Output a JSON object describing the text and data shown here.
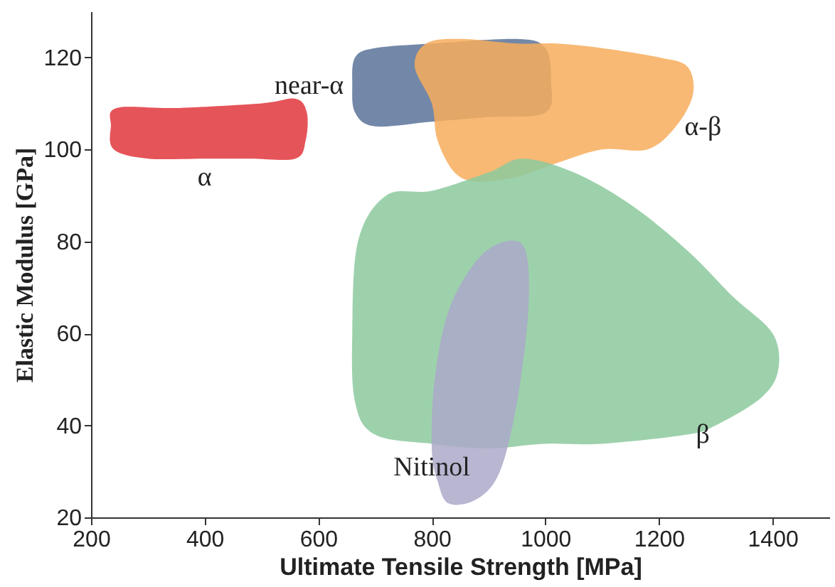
{
  "chart_data": {
    "type": "area",
    "xlabel": "Ultimate Tensile Strength [MPa]",
    "ylabel": "Elastic Modulus [GPa]",
    "xlim": [
      200,
      1500
    ],
    "ylim": [
      20,
      130
    ],
    "xticks": [
      200,
      400,
      600,
      800,
      1000,
      1200,
      1400
    ],
    "yticks": [
      20,
      40,
      60,
      80,
      100,
      120
    ],
    "grid": false,
    "legend": false,
    "series": [
      {
        "name": "α",
        "color": "#e0363c",
        "x": [
          400,
          300,
          240,
          235,
          245,
          350,
          500,
          560,
          580,
          578,
          560,
          480
        ],
        "values": [
          98,
          98,
          100,
          105,
          109,
          109,
          110,
          111,
          108,
          102,
          98,
          98
        ]
      },
      {
        "name": "near-α",
        "color": "#5a7399",
        "x": [
          660,
          665,
          700,
          800,
          900,
          1000,
          1010,
          1000,
          950,
          800,
          700,
          665
        ],
        "values": [
          114,
          108,
          105,
          106,
          107,
          108,
          115,
          122,
          124,
          123,
          122,
          120
        ]
      },
      {
        "name": "α-β",
        "color": "#f7ad5c",
        "x": [
          1230,
          1180,
          1100,
          1020,
          950,
          880,
          840,
          810,
          800,
          770,
          790,
          850,
          950,
          1020,
          1100,
          1200,
          1250,
          1260
        ],
        "values": [
          105,
          100,
          100,
          97,
          94,
          93,
          95,
          102,
          110,
          118,
          123,
          124,
          123,
          123,
          122,
          120,
          118,
          112
        ]
      },
      {
        "name": "β",
        "color": "#8cc99e",
        "x": [
          1250,
          1100,
          1000,
          900,
          800,
          700,
          665,
          660,
          670,
          720,
          800,
          900,
          960,
          1050,
          1150,
          1250,
          1330,
          1400,
          1410,
          1380,
          1300
        ],
        "values": [
          38,
          36,
          36,
          35,
          36,
          38,
          45,
          60,
          80,
          90,
          91,
          95,
          98,
          95,
          88,
          78,
          68,
          60,
          52,
          46,
          40
        ]
      },
      {
        "name": "Nitinol",
        "color": "#aba9c9",
        "x": [
          800,
          805,
          830,
          880,
          930,
          965,
          970,
          950,
          920,
          880,
          830,
          810
        ],
        "values": [
          35,
          50,
          65,
          76,
          80,
          78,
          65,
          45,
          30,
          24,
          23,
          28
        ]
      }
    ]
  }
}
